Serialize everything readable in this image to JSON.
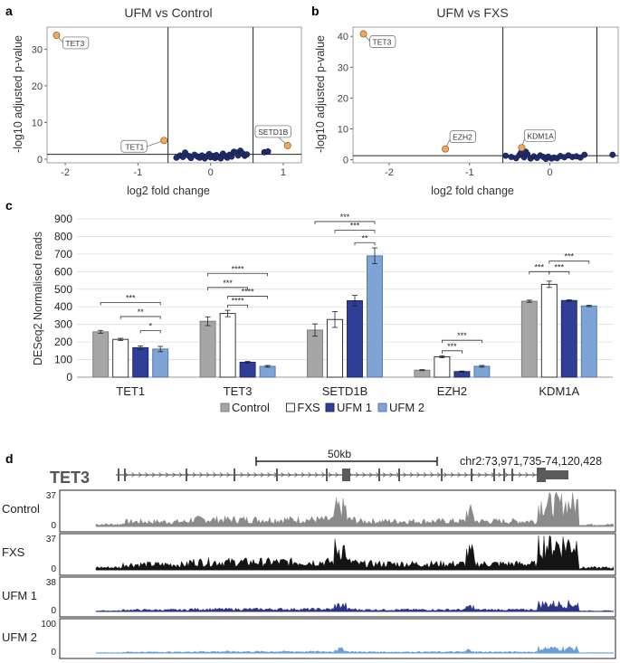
{
  "panels": {
    "a": {
      "letter": "a"
    },
    "b": {
      "letter": "b"
    },
    "c": {
      "letter": "c"
    },
    "d": {
      "letter": "d"
    }
  },
  "colors": {
    "volcano_point": "#1f2b6a",
    "volcano_highlight": "#f0a95a",
    "control": "#a6a6a6",
    "fxs": "#ffffff",
    "ufm1": "#2f3e96",
    "ufm2": "#7ea4d6",
    "track_control": "#8a8a8a",
    "track_fxs": "#141414",
    "track_ufm1": "#2c3585",
    "track_ufm2": "#6aa0d8",
    "gene": "#5a5a5a"
  },
  "chart_data": [
    {
      "id": "a",
      "type": "scatter",
      "title": "UFM vs Control",
      "xlabel": "log2 fold change",
      "ylabel": "-log10 adjusted p-value",
      "xlim": [
        -2.25,
        1.25
      ],
      "ylim": [
        -1,
        36
      ],
      "xticks": [
        -2,
        -1,
        0,
        1
      ],
      "xtick_labels": [
        "-2",
        "-1",
        "0",
        "1"
      ],
      "yticks": [
        0,
        10,
        20,
        30
      ],
      "ytick_labels": [
        "0",
        "10",
        "20",
        "30"
      ],
      "vlines": [
        -0.585,
        0.585
      ],
      "hline": 1.3,
      "highlighted": [
        {
          "label": "TET3",
          "x": -2.12,
          "y": 33.8
        },
        {
          "label": "TET1",
          "x": -0.64,
          "y": 5.1
        },
        {
          "label": "SETD1B",
          "x": 1.06,
          "y": 3.7
        }
      ],
      "points": [
        [
          -0.42,
          1.0
        ],
        [
          -0.38,
          0.6
        ],
        [
          -0.35,
          1.8
        ],
        [
          -0.3,
          0.9
        ],
        [
          -0.27,
          0.3
        ],
        [
          -0.22,
          1.2
        ],
        [
          -0.18,
          0.7
        ],
        [
          -0.15,
          0.4
        ],
        [
          -0.12,
          1.0
        ],
        [
          -0.08,
          0.2
        ],
        [
          -0.05,
          0.8
        ],
        [
          -0.02,
          1.4
        ],
        [
          0.0,
          0.5
        ],
        [
          0.03,
          0.9
        ],
        [
          0.06,
          0.3
        ],
        [
          0.08,
          1.1
        ],
        [
          0.11,
          0.6
        ],
        [
          0.14,
          0.2
        ],
        [
          0.17,
          1.5
        ],
        [
          0.2,
          0.9
        ],
        [
          0.23,
          0.4
        ],
        [
          0.26,
          1.2
        ],
        [
          0.29,
          0.7
        ],
        [
          0.32,
          2.0
        ],
        [
          0.35,
          1.8
        ],
        [
          0.38,
          1.0
        ],
        [
          0.41,
          2.3
        ],
        [
          0.44,
          1.6
        ],
        [
          0.47,
          0.9
        ],
        [
          0.5,
          1.3
        ],
        [
          0.74,
          1.9
        ],
        [
          0.79,
          2.1
        ],
        [
          -0.47,
          0.4
        ]
      ]
    },
    {
      "id": "b",
      "type": "scatter",
      "title": "UFM vs FXS",
      "xlabel": "log2 fold change",
      "ylabel": "-log10 adjusted p-value",
      "xlim": [
        -2.45,
        0.85
      ],
      "ylim": [
        -1,
        43
      ],
      "xticks": [
        -2,
        -1,
        0
      ],
      "xtick_labels": [
        "-2",
        "-1",
        "0"
      ],
      "yticks": [
        0,
        10,
        20,
        30,
        40
      ],
      "ytick_labels": [
        "0",
        "10",
        "20",
        "30",
        "40"
      ],
      "vlines": [
        -0.585,
        0.585
      ],
      "hline": 1.3,
      "highlighted": [
        {
          "label": "TET3",
          "x": -2.32,
          "y": 40.8
        },
        {
          "label": "EZH2",
          "x": -1.3,
          "y": 3.5
        },
        {
          "label": "KDM1A",
          "x": -0.35,
          "y": 3.9
        }
      ],
      "points": [
        [
          -0.55,
          1.3
        ],
        [
          -0.48,
          0.9
        ],
        [
          -0.42,
          0.5
        ],
        [
          -0.38,
          1.5
        ],
        [
          -0.32,
          0.8
        ],
        [
          -0.28,
          1.8
        ],
        [
          -0.24,
          0.4
        ],
        [
          -0.2,
          1.1
        ],
        [
          -0.16,
          0.6
        ],
        [
          -0.12,
          1.4
        ],
        [
          -0.08,
          0.9
        ],
        [
          -0.05,
          0.3
        ],
        [
          -0.02,
          1.0
        ],
        [
          0.02,
          0.4
        ],
        [
          0.05,
          0.7
        ],
        [
          0.09,
          0.5
        ],
        [
          0.13,
          1.2
        ],
        [
          0.18,
          0.8
        ],
        [
          0.23,
          1.4
        ],
        [
          0.28,
          0.9
        ],
        [
          0.33,
          1.1
        ],
        [
          0.38,
          0.7
        ],
        [
          0.43,
          1.6
        ],
        [
          0.78,
          1.6
        ],
        [
          -0.36,
          2.3
        ],
        [
          -0.3,
          2.6
        ]
      ]
    },
    {
      "id": "c",
      "type": "bar",
      "ylabel": "DESeq2 Normalised reads",
      "ylim": [
        0,
        900
      ],
      "yticks": [
        0,
        100,
        200,
        300,
        400,
        500,
        600,
        700,
        800,
        900
      ],
      "ytick_labels": [
        "0",
        "100",
        "200",
        "300",
        "400",
        "500",
        "600",
        "700",
        "800",
        "900"
      ],
      "categories": [
        "TET1",
        "TET3",
        "SETD1B",
        "EZH2",
        "KDM1A"
      ],
      "series": [
        {
          "name": "Control",
          "values": [
            258,
            318,
            268,
            40,
            432
          ],
          "errors": [
            8,
            25,
            35,
            3,
            6
          ]
        },
        {
          "name": "FXS",
          "values": [
            215,
            362,
            328,
            116,
            528
          ],
          "errors": [
            6,
            18,
            45,
            6,
            18
          ]
        },
        {
          "name": "UFM 1",
          "values": [
            168,
            85,
            435,
            32,
            436
          ],
          "errors": [
            10,
            5,
            30,
            3,
            4
          ]
        },
        {
          "name": "UFM 2",
          "values": [
            160,
            62,
            690,
            62,
            405
          ],
          "errors": [
            15,
            5,
            45,
            5,
            4
          ]
        }
      ],
      "significance": [
        {
          "cat": 0,
          "from": 0,
          "to": 3,
          "y": 425,
          "label": "***"
        },
        {
          "cat": 0,
          "from": 1,
          "to": 3,
          "y": 345,
          "label": "**"
        },
        {
          "cat": 0,
          "from": 2,
          "to": 3,
          "y": 265,
          "label": "*"
        },
        {
          "cat": 1,
          "from": 0,
          "to": 3,
          "y": 590,
          "label": "****"
        },
        {
          "cat": 1,
          "from": 0,
          "to": 2,
          "y": 510,
          "label": "***"
        },
        {
          "cat": 1,
          "from": 1,
          "to": 3,
          "y": 460,
          "label": "****"
        },
        {
          "cat": 1,
          "from": 1,
          "to": 2,
          "y": 410,
          "label": "****"
        },
        {
          "cat": 2,
          "from": 0,
          "to": 3,
          "y": 885,
          "label": "***"
        },
        {
          "cat": 2,
          "from": 1,
          "to": 3,
          "y": 835,
          "label": "***"
        },
        {
          "cat": 2,
          "from": 2,
          "to": 3,
          "y": 765,
          "label": "**"
        },
        {
          "cat": 3,
          "from": 1,
          "to": 3,
          "y": 210,
          "label": "***"
        },
        {
          "cat": 3,
          "from": 1,
          "to": 2,
          "y": 150,
          "label": "***"
        },
        {
          "cat": 4,
          "from": 0,
          "to": 1,
          "y": 600,
          "label": "***"
        },
        {
          "cat": 4,
          "from": 1,
          "to": 2,
          "y": 600,
          "label": "***"
        },
        {
          "cat": 4,
          "from": 1,
          "to": 3,
          "y": 660,
          "label": "***"
        }
      ],
      "legend": [
        "Control",
        "FXS",
        "UFM 1",
        "UFM 2"
      ]
    },
    {
      "id": "d",
      "type": "area",
      "gene": "TET3",
      "coords": "chr2:73,971,735-74,120,428",
      "scale_label": "50kb",
      "tracks": [
        {
          "name": "Control",
          "max_label": "37",
          "min_label": "0"
        },
        {
          "name": "FXS",
          "max_label": "37",
          "min_label": "0"
        },
        {
          "name": "UFM 1",
          "max_label": "38",
          "min_label": "0"
        },
        {
          "name": "UFM 2",
          "max_label": "100",
          "min_label": "0"
        }
      ]
    }
  ]
}
